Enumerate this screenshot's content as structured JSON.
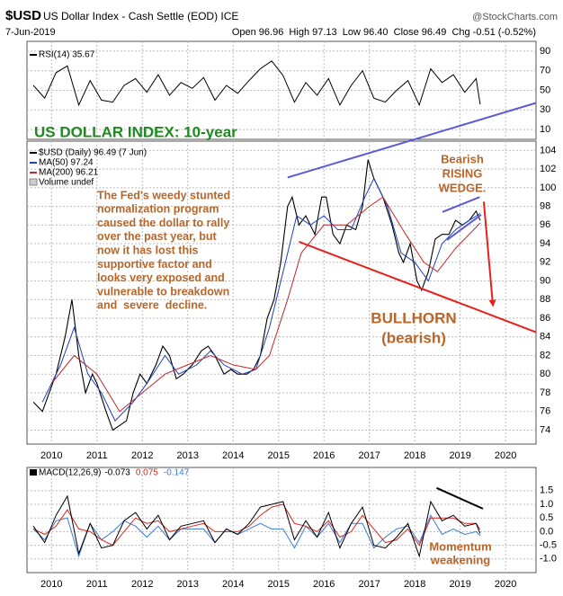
{
  "header": {
    "symbol": "$USD",
    "name": "US Dollar Index - Cash Settle (EOD) ICE",
    "source": "@StockCharts.com",
    "date": "7-Jun-2019",
    "quote": "Open 96.96  High 97.13  Low 96.40  Close 96.49  Chg -0.51 (-0.52%)"
  },
  "chart_data": [
    {
      "type": "line",
      "ylim": [
        0,
        100
      ],
      "yticks": [
        10,
        30,
        50,
        70,
        90
      ],
      "xlim": [
        2009.46,
        2020.67
      ],
      "xticks": [
        2010,
        2011,
        2012,
        2013,
        2014,
        2015,
        2016,
        2017,
        2018,
        2019,
        2020
      ],
      "x": [
        2009.6,
        2009.85,
        2010.1,
        2010.35,
        2010.6,
        2010.85,
        2011.1,
        2011.35,
        2011.6,
        2011.85,
        2012.1,
        2012.35,
        2012.6,
        2012.85,
        2013.1,
        2013.35,
        2013.6,
        2013.85,
        2014.1,
        2014.35,
        2014.6,
        2014.85,
        2015.1,
        2015.35,
        2015.6,
        2015.85,
        2016.1,
        2016.35,
        2016.6,
        2016.85,
        2017.1,
        2017.35,
        2017.6,
        2017.85,
        2018.1,
        2018.35,
        2018.6,
        2018.85,
        2019.1,
        2019.35,
        2019.44
      ],
      "series": [
        {
          "name": "RSI(14) 35.67",
          "color": "#000000",
          "values": [
            55,
            42,
            68,
            75,
            35,
            60,
            40,
            38,
            55,
            62,
            48,
            66,
            45,
            58,
            52,
            63,
            40,
            55,
            47,
            60,
            72,
            80,
            65,
            38,
            58,
            45,
            62,
            35,
            55,
            70,
            42,
            38,
            50,
            60,
            35,
            72,
            58,
            66,
            48,
            62,
            35.67
          ]
        }
      ]
    },
    {
      "type": "line",
      "ylim": [
        72.5,
        105
      ],
      "yticks": [
        74,
        76,
        78,
        80,
        82,
        84,
        86,
        88,
        90,
        92,
        94,
        96,
        98,
        100,
        102,
        104
      ],
      "xlim": [
        2009.46,
        2020.67
      ],
      "xticks": [
        2010,
        2011,
        2012,
        2013,
        2014,
        2015,
        2016,
        2017,
        2018,
        2019,
        2020
      ],
      "series": [
        {
          "name": "$USD (Daily) 96.49 (7 Jun)",
          "color": "#000000",
          "x": [
            2009.6,
            2009.8,
            2009.95,
            2010.1,
            2010.3,
            2010.45,
            2010.6,
            2010.75,
            2010.9,
            2011.0,
            2011.2,
            2011.35,
            2011.5,
            2011.65,
            2011.8,
            2011.95,
            2012.1,
            2012.3,
            2012.45,
            2012.6,
            2012.75,
            2012.9,
            2013.1,
            2013.3,
            2013.45,
            2013.6,
            2013.8,
            2013.95,
            2014.1,
            2014.3,
            2014.45,
            2014.6,
            2014.75,
            2014.9,
            2015.05,
            2015.2,
            2015.3,
            2015.45,
            2015.6,
            2015.8,
            2015.95,
            2016.05,
            2016.2,
            2016.35,
            2016.5,
            2016.7,
            2016.85,
            2016.97,
            2017.1,
            2017.3,
            2017.5,
            2017.65,
            2017.75,
            2017.9,
            2018.05,
            2018.15,
            2018.3,
            2018.45,
            2018.6,
            2018.75,
            2018.9,
            2019.05,
            2019.2,
            2019.35,
            2019.44
          ],
          "values": [
            77,
            76,
            78,
            80,
            84,
            88,
            82,
            78,
            80,
            79,
            76,
            74,
            74.5,
            75,
            78,
            80,
            79,
            81,
            83,
            82,
            79.5,
            80,
            81,
            82.5,
            83,
            82,
            80,
            80.5,
            80,
            80,
            80.5,
            82,
            86,
            88,
            92,
            98,
            99,
            96,
            97,
            95,
            99,
            99,
            95,
            94,
            96,
            95.5,
            98,
            103,
            101,
            99,
            96,
            93,
            92,
            94,
            90,
            89,
            91,
            94.5,
            95,
            95,
            96.5,
            96,
            96.5,
            97.5,
            96.49
          ]
        },
        {
          "name": "MA(50) 97.24",
          "color": "#1f3fbf",
          "x": [
            2009.8,
            2010.2,
            2010.5,
            2010.8,
            2011.1,
            2011.4,
            2011.8,
            2012.1,
            2012.5,
            2012.8,
            2013.2,
            2013.5,
            2013.8,
            2014.2,
            2014.5,
            2014.8,
            2015.1,
            2015.4,
            2015.7,
            2016.0,
            2016.3,
            2016.6,
            2016.9,
            2017.1,
            2017.4,
            2017.7,
            2018.0,
            2018.3,
            2018.6,
            2018.9,
            2019.2,
            2019.44
          ],
          "values": [
            77,
            81,
            85,
            80,
            78,
            75,
            77,
            79,
            82,
            80,
            81,
            82.5,
            81,
            80,
            80.5,
            85,
            91,
            97,
            96,
            97,
            95.5,
            95.5,
            99,
            101,
            98,
            93,
            92,
            90,
            94,
            95.5,
            96.5,
            97.24
          ]
        },
        {
          "name": "MA(200) 96.21",
          "color": "#c0282d",
          "x": [
            2010.0,
            2010.5,
            2011.0,
            2011.5,
            2012.0,
            2012.5,
            2013.0,
            2013.5,
            2014.0,
            2014.5,
            2014.8,
            2015.2,
            2015.5,
            2016.0,
            2016.5,
            2017.0,
            2017.3,
            2017.8,
            2018.2,
            2018.5,
            2018.9,
            2019.44
          ],
          "values": [
            79,
            82,
            80,
            76,
            78,
            80,
            81,
            82,
            81,
            80.5,
            82,
            88,
            93,
            96,
            96,
            98,
            99,
            95,
            92,
            91,
            93.5,
            96.21
          ]
        }
      ],
      "volume_label": "Volume undef",
      "trendlines": [
        {
          "color": "#5a5ad6",
          "x": [
            2015.2,
            2020.67
          ],
          "y": [
            101.1,
            109.1
          ]
        },
        {
          "color": "#e8201c",
          "x": [
            2015.45,
            2020.67
          ],
          "y": [
            94.2,
            84.5
          ]
        },
        {
          "color": "#5a5ad6",
          "x": [
            2018.61,
            2019.43
          ],
          "y": [
            97.4,
            99.0
          ]
        },
        {
          "color": "#5a5ad6",
          "x": [
            2018.71,
            2019.46
          ],
          "y": [
            94.4,
            97.1
          ]
        },
        {
          "color": "#e8201c",
          "x": [
            2019.52,
            2019.72
          ],
          "y": [
            98.5,
            87.4
          ],
          "arrow": true
        }
      ],
      "annotations": {
        "index_title": [
          "US DOLLAR INDEX: 10-year"
        ],
        "fed_note": [
          "The Fed's weedy stunted",
          "normalization program",
          "caused the dollar to rally",
          "over the past year, but",
          "now it has lost this",
          "supportive factor and",
          "looks very exposed and",
          "vulnerable to breakdown",
          "and  severe  decline."
        ],
        "wedge": [
          "Bearish",
          "RISING",
          "WEDGE."
        ],
        "bullhorn": [
          "BULLHORN",
          "(bearish)"
        ]
      }
    },
    {
      "type": "line",
      "ylim": [
        -1.5,
        2.35
      ],
      "yticks": [
        {
          "value": -1,
          "label": "-1.0"
        },
        -0.5,
        {
          "value": 0,
          "label": "0.0"
        },
        0.5,
        {
          "value": 1,
          "label": "1.0"
        },
        1.5
      ],
      "xlim": [
        2009.46,
        2020.67
      ],
      "xticks": [
        2010,
        2011,
        2012,
        2013,
        2014,
        2015,
        2016,
        2017,
        2018,
        2019,
        2020
      ],
      "label": "MACD(12,26,9)",
      "x": [
        2009.6,
        2009.85,
        2010.1,
        2010.35,
        2010.6,
        2010.85,
        2011.1,
        2011.35,
        2011.6,
        2011.85,
        2012.1,
        2012.35,
        2012.6,
        2012.85,
        2013.1,
        2013.35,
        2013.6,
        2013.85,
        2014.1,
        2014.35,
        2014.6,
        2014.85,
        2015.1,
        2015.35,
        2015.6,
        2015.85,
        2016.1,
        2016.35,
        2016.6,
        2016.85,
        2017.1,
        2017.35,
        2017.6,
        2017.85,
        2018.1,
        2018.35,
        2018.6,
        2018.85,
        2019.1,
        2019.35,
        2019.44
      ],
      "series": [
        {
          "name": "-0.147",
          "color": "#3a7bd5",
          "values": [
            0.1,
            -0.3,
            0.4,
            0.5,
            -0.9,
            0.3,
            -0.3,
            0.0,
            0.4,
            0.2,
            -0.2,
            0.2,
            -0.3,
            0.1,
            0.1,
            0.1,
            -0.4,
            0.1,
            -0.1,
            0.1,
            0.3,
            0.1,
            0.1,
            -0.6,
            0.2,
            -0.2,
            0.3,
            -0.4,
            0.3,
            0.3,
            -0.6,
            -0.2,
            0.1,
            0.2,
            -0.4,
            0.6,
            -0.1,
            0.1,
            -0.1,
            0.0,
            -0.147
          ]
        },
        {
          "name": "0.075",
          "color": "#d9261c",
          "values": [
            0.1,
            -0.1,
            0.2,
            0.8,
            0.1,
            0.0,
            -0.3,
            -0.5,
            0.0,
            0.5,
            0.3,
            0.4,
            0.0,
            0.1,
            0.2,
            0.3,
            0.0,
            0.0,
            0.0,
            0.2,
            0.6,
            0.9,
            1.0,
            0.3,
            0.2,
            0.0,
            0.4,
            -0.2,
            0.0,
            0.6,
            0.1,
            -0.4,
            -0.3,
            0.1,
            -0.5,
            0.5,
            0.5,
            0.5,
            0.3,
            0.3,
            0.075
          ]
        },
        {
          "name": "-0.073",
          "color": "#000000",
          "values": [
            0.2,
            -0.4,
            0.6,
            1.3,
            -0.8,
            0.3,
            -0.6,
            -0.5,
            0.4,
            0.7,
            0.1,
            0.6,
            -0.3,
            0.2,
            0.3,
            0.4,
            -0.4,
            0.1,
            -0.1,
            0.3,
            0.9,
            1.0,
            1.1,
            -0.3,
            0.4,
            -0.2,
            0.7,
            -0.6,
            0.3,
            0.9,
            -0.5,
            -0.6,
            -0.2,
            0.3,
            -0.9,
            1.1,
            0.4,
            0.6,
            0.2,
            0.3,
            -0.073
          ]
        }
      ],
      "trendlines": [
        {
          "color": "#000000",
          "x": [
            2018.48,
            2019.5
          ],
          "y": [
            1.6,
            0.84
          ]
        }
      ],
      "annotations": {
        "momentum": [
          "Momentum",
          "weakening"
        ]
      }
    }
  ]
}
